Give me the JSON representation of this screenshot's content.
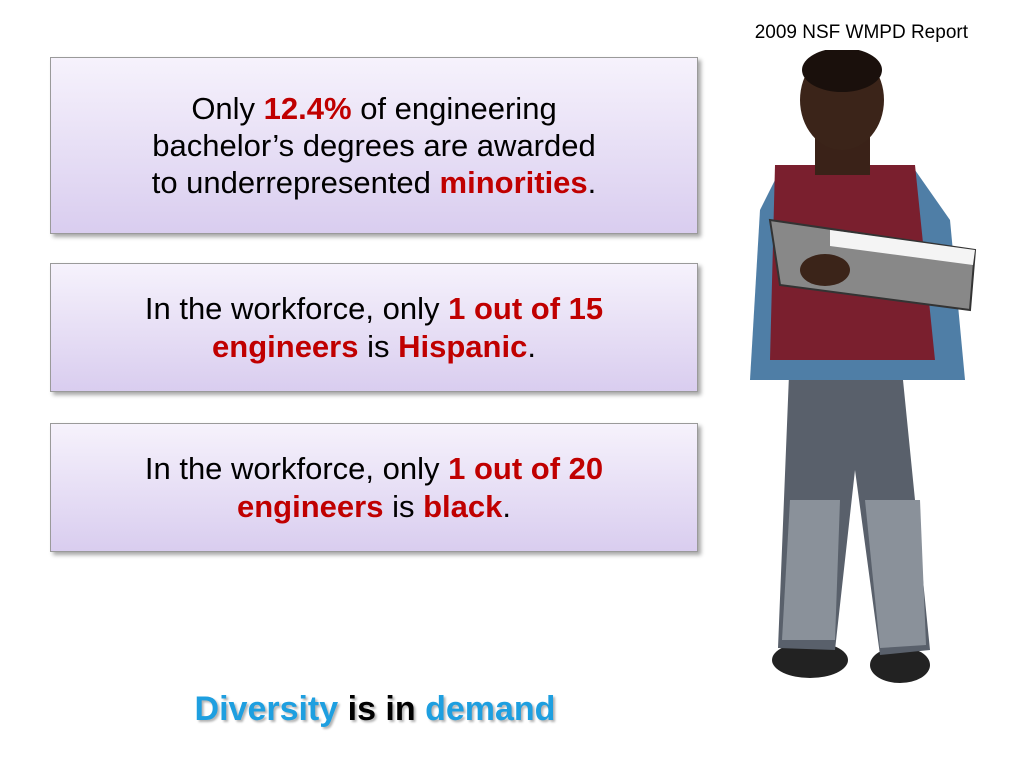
{
  "source": "2009 NSF WMPD Report",
  "boxes": [
    {
      "lines": [
        [
          {
            "text": "Only "
          },
          {
            "text": "12.4%",
            "highlight": true
          },
          {
            "text": " of engineering"
          }
        ],
        [
          {
            "text": "bachelor’s degrees are awarded"
          }
        ],
        [
          {
            "text": "to underrepresented "
          },
          {
            "text": "minorities",
            "highlight": true
          },
          {
            "text": "."
          }
        ]
      ]
    },
    {
      "lines": [
        [
          {
            "text": "In the workforce, only "
          },
          {
            "text": "1 out of 15",
            "highlight": true
          }
        ],
        [
          {
            "text": "engineers",
            "highlight": true
          },
          {
            "text": " is "
          },
          {
            "text": "Hispanic",
            "highlight": true
          },
          {
            "text": "."
          }
        ]
      ]
    },
    {
      "lines": [
        [
          {
            "text": "In the workforce, only "
          },
          {
            "text": "1 out of 20",
            "highlight": true
          }
        ],
        [
          {
            "text": "engineers",
            "highlight": true
          },
          {
            "text": " is "
          },
          {
            "text": "black",
            "highlight": true
          },
          {
            "text": "."
          }
        ]
      ]
    }
  ],
  "footer": [
    {
      "text": "Diversity",
      "highlight": true
    },
    {
      "text": " is in "
    },
    {
      "text": "demand",
      "highlight": true
    }
  ]
}
